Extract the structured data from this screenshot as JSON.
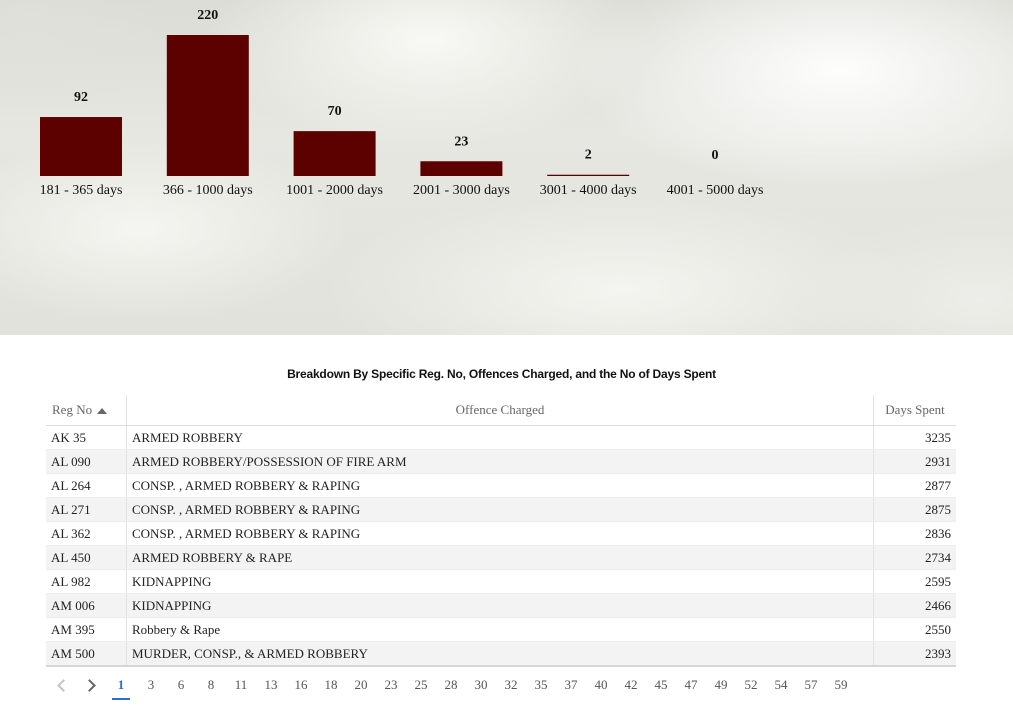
{
  "chart_data": {
    "type": "bar",
    "categories": [
      "181 - 365 days",
      "366 - 1000 days",
      "1001 - 2000 days",
      "2001 - 3000 days",
      "3001 - 4000 days",
      "4001 - 5000 days"
    ],
    "values": [
      92,
      220,
      70,
      23,
      2,
      0
    ],
    "title": "",
    "xlabel": "",
    "ylabel": "",
    "ylim": [
      0,
      220
    ],
    "grid": false,
    "legend": "none",
    "bar_color": "#5c0000"
  },
  "table": {
    "title": "Breakdown By Specific Reg. No, Offences Charged, and the No of Days Spent",
    "columns": [
      "Reg No",
      "Offence Charged",
      "Days Spent"
    ],
    "sort": {
      "column": "Reg No",
      "direction": "ascending"
    },
    "rows": [
      {
        "reg": "AK 35",
        "offence": "ARMED ROBBERY",
        "days": "3235"
      },
      {
        "reg": "AL 090",
        "offence": "ARMED ROBBERY/POSSESSION OF FIRE ARM",
        "days": "2931"
      },
      {
        "reg": "AL 264",
        "offence": "CONSP. , ARMED ROBBERY & RAPING",
        "days": "2877"
      },
      {
        "reg": "AL 271",
        "offence": "CONSP. , ARMED ROBBERY & RAPING",
        "days": "2875"
      },
      {
        "reg": "AL 362",
        "offence": "CONSP. , ARMED ROBBERY & RAPING",
        "days": "2836"
      },
      {
        "reg": "AL 450",
        "offence": "ARMED ROBBERY & RAPE",
        "days": "2734"
      },
      {
        "reg": "AL 982",
        "offence": "KIDNAPPING",
        "days": "2595"
      },
      {
        "reg": "AM 006",
        "offence": "KIDNAPPING",
        "days": "2466"
      },
      {
        "reg": "AM 395",
        "offence": "Robbery & Rape",
        "days": "2550"
      },
      {
        "reg": "AM 500",
        "offence": "MURDER, CONSP., & ARMED ROBBERY",
        "days": "2393"
      }
    ]
  },
  "pagination": {
    "current": "1",
    "pages": [
      "1",
      "3",
      "6",
      "8",
      "11",
      "13",
      "16",
      "18",
      "20",
      "23",
      "25",
      "28",
      "30",
      "32",
      "35",
      "37",
      "40",
      "42",
      "45",
      "47",
      "49",
      "52",
      "54",
      "57",
      "59"
    ],
    "prev_icon": "chevron-left-icon",
    "next_icon": "chevron-right-icon"
  }
}
